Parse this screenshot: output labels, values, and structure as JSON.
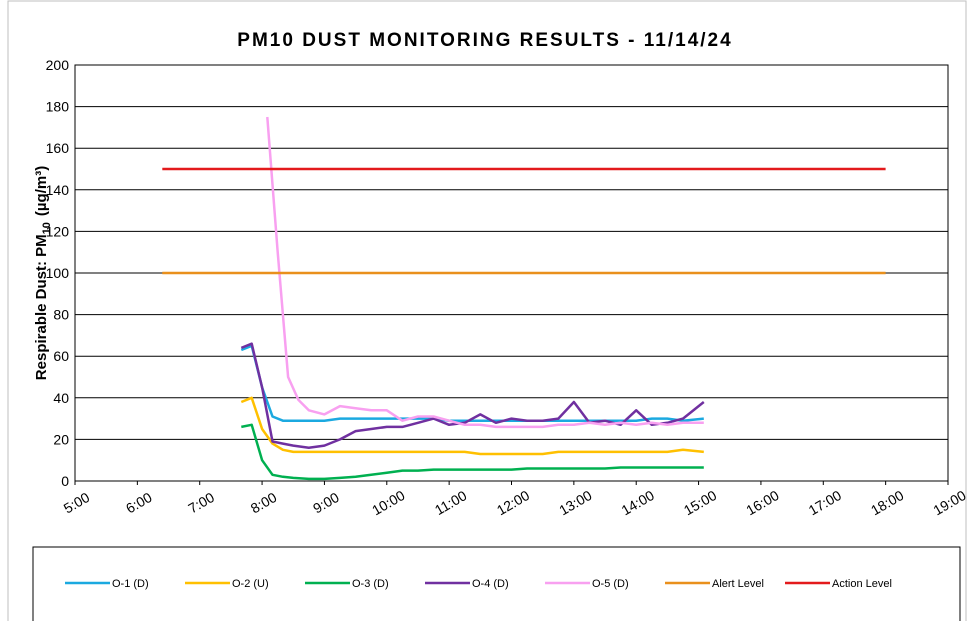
{
  "chart_data": {
    "type": "line",
    "title": "PM10 DUST MONITORING RESULTS - 11/14/24",
    "ylabel": {
      "text": "Respirable Dust: PM",
      "sub": "10",
      "unit": "(µg/m³)"
    },
    "ylim": [
      0,
      200
    ],
    "yticks": [
      0,
      20,
      40,
      60,
      80,
      100,
      120,
      140,
      160,
      180,
      200
    ],
    "xlim": [
      "5:00",
      "19:00"
    ],
    "xticks": [
      "5:00",
      "6:00",
      "7:00",
      "8:00",
      "9:00",
      "10:00",
      "11:00",
      "12:00",
      "13:00",
      "14:00",
      "15:00",
      "16:00",
      "17:00",
      "18:00",
      "19:00"
    ],
    "grid": true,
    "legend": "bottom",
    "series": [
      {
        "name": "O-1 (D)",
        "color": "#1ba9e0",
        "x": [
          "7:40",
          "7:50",
          "8:00",
          "8:10",
          "8:20",
          "8:30",
          "8:45",
          "9:00",
          "9:15",
          "9:30",
          "9:45",
          "10:00",
          "10:15",
          "10:30",
          "10:45",
          "11:00",
          "11:15",
          "11:30",
          "11:45",
          "12:00",
          "12:15",
          "12:30",
          "12:45",
          "13:00",
          "13:15",
          "13:30",
          "13:45",
          "14:00",
          "14:15",
          "14:30",
          "14:45",
          "15:05"
        ],
        "values": [
          63,
          65,
          45,
          31,
          29,
          29,
          29,
          29,
          30,
          30,
          30,
          30,
          30,
          30,
          30,
          29,
          29,
          29,
          29,
          29,
          29,
          29,
          29,
          29,
          29,
          29,
          29,
          29,
          30,
          30,
          29,
          30
        ]
      },
      {
        "name": "O-2 (U)",
        "color": "#ffc000",
        "x": [
          "7:40",
          "7:50",
          "8:00",
          "8:10",
          "8:20",
          "8:30",
          "8:45",
          "9:00",
          "9:15",
          "9:30",
          "9:45",
          "10:00",
          "10:15",
          "10:30",
          "10:45",
          "11:00",
          "11:15",
          "11:30",
          "11:45",
          "12:00",
          "12:15",
          "12:30",
          "12:45",
          "13:00",
          "13:15",
          "13:30",
          "13:45",
          "14:00",
          "14:15",
          "14:30",
          "14:45",
          "15:05"
        ],
        "values": [
          38,
          40,
          25,
          18,
          15,
          14,
          14,
          14,
          14,
          14,
          14,
          14,
          14,
          14,
          14,
          14,
          14,
          13,
          13,
          13,
          13,
          13,
          14,
          14,
          14,
          14,
          14,
          14,
          14,
          14,
          15,
          14
        ]
      },
      {
        "name": "O-3 (D)",
        "color": "#00b050",
        "x": [
          "7:40",
          "7:50",
          "8:00",
          "8:10",
          "8:20",
          "8:30",
          "8:45",
          "9:00",
          "9:15",
          "9:30",
          "9:45",
          "10:00",
          "10:15",
          "10:30",
          "10:45",
          "11:00",
          "11:15",
          "11:30",
          "11:45",
          "12:00",
          "12:15",
          "12:30",
          "12:45",
          "13:00",
          "13:15",
          "13:30",
          "13:45",
          "14:00",
          "14:15",
          "14:30",
          "14:45",
          "15:05"
        ],
        "values": [
          26,
          27,
          10,
          3,
          2,
          1.5,
          1,
          1,
          1.5,
          2,
          3,
          4,
          5,
          5,
          5.5,
          5.5,
          5.5,
          5.5,
          5.5,
          5.5,
          6,
          6,
          6,
          6,
          6,
          6,
          6.5,
          6.5,
          6.5,
          6.5,
          6.5,
          6.5
        ]
      },
      {
        "name": "O-4 (D)",
        "color": "#7030a0",
        "x": [
          "7:40",
          "7:50",
          "8:00",
          "8:10",
          "8:20",
          "8:30",
          "8:45",
          "9:00",
          "9:15",
          "9:30",
          "9:45",
          "10:00",
          "10:15",
          "10:30",
          "10:45",
          "11:00",
          "11:15",
          "11:30",
          "11:45",
          "12:00",
          "12:15",
          "12:30",
          "12:45",
          "13:00",
          "13:15",
          "13:30",
          "13:45",
          "14:00",
          "14:15",
          "14:30",
          "14:45",
          "15:05"
        ],
        "values": [
          64,
          66,
          45,
          19,
          18,
          17,
          16,
          17,
          20,
          24,
          25,
          26,
          26,
          28,
          30,
          27,
          28,
          32,
          28,
          30,
          29,
          29,
          30,
          38,
          28,
          29,
          27,
          34,
          27,
          28,
          30,
          38
        ]
      },
      {
        "name": "O-5 (D)",
        "color": "#f8a0f0",
        "x": [
          "8:05",
          "8:15",
          "8:25",
          "8:35",
          "8:45",
          "9:00",
          "9:15",
          "9:30",
          "9:45",
          "10:00",
          "10:15",
          "10:30",
          "10:45",
          "11:00",
          "11:15",
          "11:30",
          "11:45",
          "12:00",
          "12:15",
          "12:30",
          "12:45",
          "13:00",
          "13:15",
          "13:30",
          "13:45",
          "14:00",
          "14:15",
          "14:30",
          "14:45",
          "15:05"
        ],
        "values": [
          175,
          110,
          50,
          39,
          34,
          32,
          36,
          35,
          34,
          34,
          29,
          31,
          31,
          29,
          27,
          27,
          26,
          26,
          26,
          26,
          27,
          27,
          28,
          27,
          28,
          27,
          28,
          27,
          28,
          28
        ]
      },
      {
        "name": "Alert Level",
        "color": "#e9901c",
        "x": [
          "6:24",
          "18:00"
        ],
        "values": [
          100,
          100
        ]
      },
      {
        "name": "Action Level",
        "color": "#e31a1c",
        "x": [
          "6:24",
          "18:00"
        ],
        "values": [
          150,
          150
        ]
      }
    ]
  }
}
